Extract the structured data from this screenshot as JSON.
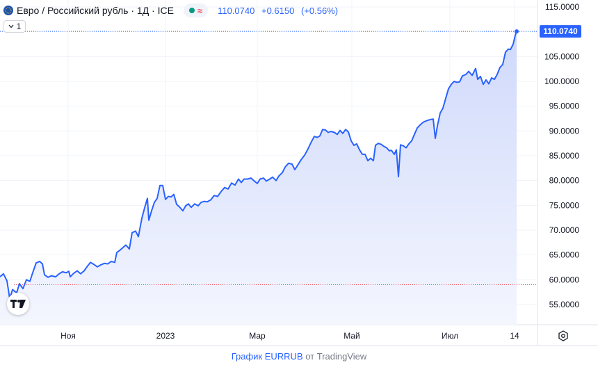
{
  "header": {
    "title": "Евро / Российский рубль · 1Д · ICE",
    "last": "110.0740",
    "change": "+0.6150",
    "change_pct": "(+0.56%)",
    "interval": "1"
  },
  "price_label": "110.0740",
  "footer": {
    "link_text": "График EURRUB",
    "suffix": "от TradingView"
  },
  "icons": [
    "symbol-flag-icon",
    "chevron-down-icon",
    "tradingview-logo-icon",
    "settings-icon"
  ],
  "colors": {
    "line": "#2962ff",
    "area_top": "#cfd9fb",
    "area_bottom": "#f4f6fe",
    "price_label_bg": "#2962ff",
    "baseline_red": "#f23645"
  },
  "chart_data": {
    "type": "area",
    "title": "Евро / Российский рубль · 1Д · ICE",
    "xlabel": "",
    "ylabel": "",
    "ylim": [
      52,
      116
    ],
    "xlim": [
      0,
      740
    ],
    "x_ticks": [
      {
        "x": 98,
        "label": "Ноя"
      },
      {
        "x": 238,
        "label": "2023"
      },
      {
        "x": 370,
        "label": "Мар"
      },
      {
        "x": 506,
        "label": "Май"
      },
      {
        "x": 647,
        "label": "Июл"
      },
      {
        "x": 740,
        "label": "14"
      }
    ],
    "y_ticks": [
      55,
      60,
      65,
      70,
      75,
      80,
      85,
      90,
      95,
      100,
      105,
      110,
      115
    ],
    "y_tick_labels": [
      "55.0000",
      "60.0000",
      "65.0000",
      "70.0000",
      "75.0000",
      "80.0000",
      "85.0000",
      "90.0000",
      "95.0000",
      "100.0000",
      "105.0000",
      "110.0000",
      "115.0000"
    ],
    "baseline_value": 59.0,
    "last_value": 110.074,
    "grid": true,
    "series": [
      {
        "name": "EURRUB",
        "points": [
          [
            0,
            60.6
          ],
          [
            5,
            61.2
          ],
          [
            10,
            59.8
          ],
          [
            14,
            56.2
          ],
          [
            18,
            58.0
          ],
          [
            24,
            57.4
          ],
          [
            28,
            59.2
          ],
          [
            33,
            58.2
          ],
          [
            38,
            60.0
          ],
          [
            43,
            59.7
          ],
          [
            47,
            61.4
          ],
          [
            52,
            63.4
          ],
          [
            57,
            63.7
          ],
          [
            61,
            63.2
          ],
          [
            64,
            61.0
          ],
          [
            69,
            60.5
          ],
          [
            74,
            60.8
          ],
          [
            80,
            60.6
          ],
          [
            85,
            61.2
          ],
          [
            90,
            61.6
          ],
          [
            95,
            61.4
          ],
          [
            99,
            61.7
          ],
          [
            101,
            60.6
          ],
          [
            106,
            61.3
          ],
          [
            111,
            61.8
          ],
          [
            116,
            61.2
          ],
          [
            121,
            61.8
          ],
          [
            125,
            62.6
          ],
          [
            130,
            63.5
          ],
          [
            135,
            63.1
          ],
          [
            140,
            62.6
          ],
          [
            145,
            63.0
          ],
          [
            150,
            63.3
          ],
          [
            155,
            63.2
          ],
          [
            160,
            63.7
          ],
          [
            165,
            63.5
          ],
          [
            168,
            65.5
          ],
          [
            172,
            65.9
          ],
          [
            176,
            66.4
          ],
          [
            181,
            67.0
          ],
          [
            186,
            66.2
          ],
          [
            190,
            69.5
          ],
          [
            195,
            69.8
          ],
          [
            199,
            68.7
          ],
          [
            204,
            72.4
          ],
          [
            208,
            74.5
          ],
          [
            212,
            76.4
          ],
          [
            214,
            72.0
          ],
          [
            218,
            73.9
          ],
          [
            222,
            75.6
          ],
          [
            226,
            76.4
          ],
          [
            230,
            79.0
          ],
          [
            234,
            79.0
          ],
          [
            238,
            76.2
          ],
          [
            242,
            76.8
          ],
          [
            246,
            76.7
          ],
          [
            250,
            77.2
          ],
          [
            254,
            75.2
          ],
          [
            258,
            74.7
          ],
          [
            263,
            73.9
          ],
          [
            267,
            74.9
          ],
          [
            271,
            75.3
          ],
          [
            275,
            74.6
          ],
          [
            280,
            75.3
          ],
          [
            285,
            74.9
          ],
          [
            289,
            75.6
          ],
          [
            294,
            75.8
          ],
          [
            298,
            75.7
          ],
          [
            303,
            76.1
          ],
          [
            308,
            77.0
          ],
          [
            313,
            76.8
          ],
          [
            318,
            77.8
          ],
          [
            323,
            78.6
          ],
          [
            328,
            78.3
          ],
          [
            333,
            79.5
          ],
          [
            338,
            79.1
          ],
          [
            343,
            80.3
          ],
          [
            347,
            79.6
          ],
          [
            351,
            80.3
          ],
          [
            356,
            80.3
          ],
          [
            361,
            80.5
          ],
          [
            365,
            80.0
          ],
          [
            370,
            79.4
          ],
          [
            374,
            80.3
          ],
          [
            379,
            80.5
          ],
          [
            383,
            79.9
          ],
          [
            388,
            80.3
          ],
          [
            392,
            80.7
          ],
          [
            397,
            80.0
          ],
          [
            401,
            80.9
          ],
          [
            406,
            81.6
          ],
          [
            410,
            82.7
          ],
          [
            415,
            83.5
          ],
          [
            420,
            83.3
          ],
          [
            424,
            82.2
          ],
          [
            429,
            83.3
          ],
          [
            433,
            84.2
          ],
          [
            438,
            85.1
          ],
          [
            443,
            86.4
          ],
          [
            447,
            87.6
          ],
          [
            452,
            88.9
          ],
          [
            456,
            88.7
          ],
          [
            460,
            89.0
          ],
          [
            464,
            90.3
          ],
          [
            468,
            90.2
          ],
          [
            472,
            89.7
          ],
          [
            476,
            89.9
          ],
          [
            481,
            89.7
          ],
          [
            485,
            89.3
          ],
          [
            489,
            90.1
          ],
          [
            493,
            89.5
          ],
          [
            497,
            90.3
          ],
          [
            501,
            89.8
          ],
          [
            505,
            88.0
          ],
          [
            509,
            87.1
          ],
          [
            513,
            87.4
          ],
          [
            517,
            86.2
          ],
          [
            521,
            85.3
          ],
          [
            525,
            85.3
          ],
          [
            529,
            84.0
          ],
          [
            533,
            84.5
          ],
          [
            537,
            84.0
          ],
          [
            540,
            87.1
          ],
          [
            544,
            87.5
          ],
          [
            548,
            87.3
          ],
          [
            552,
            86.9
          ],
          [
            556,
            86.6
          ],
          [
            560,
            86.0
          ],
          [
            563,
            86.1
          ],
          [
            567,
            85.3
          ],
          [
            570,
            86.2
          ],
          [
            573,
            80.8
          ],
          [
            576,
            87.2
          ],
          [
            580,
            87.0
          ],
          [
            584,
            86.6
          ],
          [
            588,
            87.4
          ],
          [
            592,
            88.0
          ],
          [
            596,
            89.3
          ],
          [
            600,
            90.6
          ],
          [
            604,
            91.2
          ],
          [
            609,
            91.8
          ],
          [
            614,
            92.1
          ],
          [
            619,
            92.3
          ],
          [
            623,
            92.4
          ],
          [
            626,
            88.5
          ],
          [
            629,
            91.0
          ],
          [
            633,
            93.6
          ],
          [
            637,
            94.6
          ],
          [
            641,
            96.6
          ],
          [
            645,
            98.5
          ],
          [
            649,
            99.4
          ],
          [
            653,
            100.0
          ],
          [
            657,
            99.8
          ],
          [
            661,
            99.9
          ],
          [
            665,
            101.1
          ],
          [
            670,
            101.4
          ],
          [
            674,
            102.0
          ],
          [
            679,
            101.2
          ],
          [
            684,
            102.6
          ],
          [
            687,
            100.4
          ],
          [
            691,
            101.0
          ],
          [
            695,
            99.4
          ],
          [
            699,
            100.3
          ],
          [
            703,
            99.5
          ],
          [
            707,
            100.7
          ],
          [
            711,
            100.4
          ],
          [
            715,
            101.4
          ],
          [
            719,
            102.8
          ],
          [
            723,
            103.4
          ],
          [
            727,
            105.9
          ],
          [
            731,
            106.5
          ],
          [
            734,
            106.4
          ],
          [
            738,
            107.5
          ],
          [
            741,
            109.3
          ],
          [
            743,
            110.07
          ]
        ]
      }
    ]
  }
}
